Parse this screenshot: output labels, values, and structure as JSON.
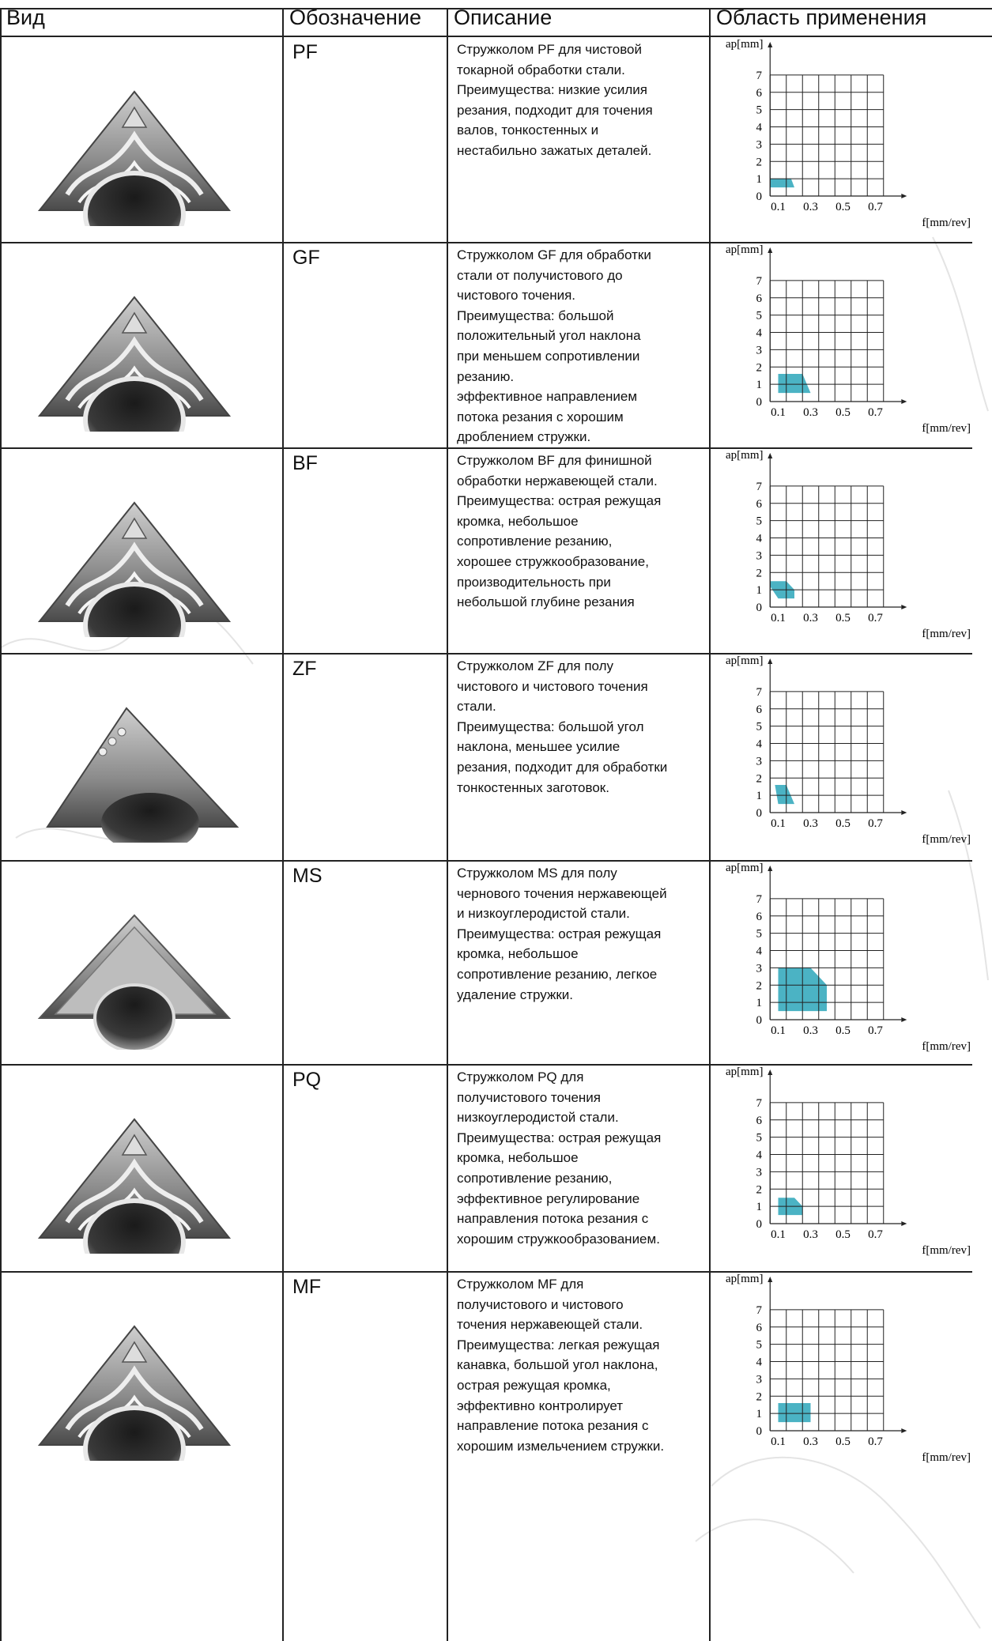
{
  "header": {
    "col_view": "Вид",
    "col_code": "Обозначение",
    "col_desc": "Описание",
    "col_app": "Область применения"
  },
  "chart_axes": {
    "ylabel": "ap[mm]",
    "xlabel": "f[mm/rev]",
    "yticks": [
      "0",
      "1",
      "2",
      "3",
      "4",
      "5",
      "6",
      "7"
    ],
    "xticks": [
      "0.1",
      "0.3",
      "0.5",
      "0.7"
    ],
    "fill_color": "#4bb3c4"
  },
  "rows": [
    {
      "code": "PF",
      "icon": "pf-insert-icon",
      "description": "Стружколом PF для чистовой\nтокарной обработки стали.\nПреимущества: низкие усилия\nрезания, подходит для точения\nвалов, тонкостенных и\nнестабильно зажатых деталей.",
      "chart_data": {
        "type": "area",
        "xlabel": "f[mm/rev]",
        "ylabel": "ap[mm]",
        "xlim": [
          0,
          0.8
        ],
        "ylim": [
          0,
          7.5
        ],
        "region": [
          [
            0.05,
            0.5
          ],
          [
            0.2,
            0.5
          ],
          [
            0.18,
            1
          ],
          [
            0.05,
            1
          ]
        ]
      }
    },
    {
      "code": "GF",
      "icon": "gf-insert-icon",
      "description": "Стружколом GF для обработки\nстали от получистового до\nчистового точения.\nПреимущества: большой\nположительный угол наклона\nпри меньшем сопротивлении\nрезанию.\nэффективное направлением\nпотока резания с хорошим\nдроблением стружки.",
      "chart_data": {
        "type": "area",
        "xlabel": "f[mm/rev]",
        "ylabel": "ap[mm]",
        "xlim": [
          0,
          0.8
        ],
        "ylim": [
          0,
          7.5
        ],
        "region": [
          [
            0.1,
            0.5
          ],
          [
            0.3,
            0.5
          ],
          [
            0.25,
            1.6
          ],
          [
            0.1,
            1.6
          ]
        ]
      }
    },
    {
      "code": "BF",
      "icon": "bf-insert-icon",
      "description": "Стружколом BF для финишной\nобработки нержавеющей стали.\nПреимущества: острая режущая\nкромка, небольшое\nсопротивление резанию,\nхорошее стружкообразование,\nпроизводительность при\nнебольшой глубине резания",
      "chart_data": {
        "type": "area",
        "xlabel": "f[mm/rev]",
        "ylabel": "ap[mm]",
        "xlim": [
          0,
          0.8
        ],
        "ylim": [
          0,
          7.5
        ],
        "region": [
          [
            0.1,
            0.5
          ],
          [
            0.2,
            0.5
          ],
          [
            0.2,
            1
          ],
          [
            0.15,
            1.5
          ],
          [
            0.05,
            1.5
          ],
          [
            0.05,
            1.2
          ]
        ]
      }
    },
    {
      "code": "ZF",
      "icon": "zf-insert-icon",
      "description": "Стружколом ZF для полу\nчистового и чистового точения\nстали.\nПреимущества: большой угол\nнаклона, меньшее усилие\nрезания, подходит для обработки\nтонкостенных заготовок.",
      "chart_data": {
        "type": "area",
        "xlabel": "f[mm/rev]",
        "ylabel": "ap[mm]",
        "xlim": [
          0,
          0.8
        ],
        "ylim": [
          0,
          7.5
        ],
        "region": [
          [
            0.1,
            0.5
          ],
          [
            0.2,
            0.5
          ],
          [
            0.15,
            1.6
          ],
          [
            0.08,
            1.6
          ]
        ]
      }
    },
    {
      "code": "MS",
      "icon": "ms-insert-icon",
      "description": "Стружколом MS для полу\nчернового точения нержавеющей\nи низкоуглеродистой стали.\nПреимущества: острая режущая\nкромка, небольшое\nсопротивление резанию, легкое\nудаление стружки.",
      "chart_data": {
        "type": "area",
        "xlabel": "f[mm/rev]",
        "ylabel": "ap[mm]",
        "xlim": [
          0,
          0.8
        ],
        "ylim": [
          0,
          7.5
        ],
        "region": [
          [
            0.1,
            0.5
          ],
          [
            0.4,
            0.5
          ],
          [
            0.4,
            2
          ],
          [
            0.3,
            3
          ],
          [
            0.1,
            3
          ]
        ]
      }
    },
    {
      "code": "PQ",
      "icon": "pq-insert-icon",
      "description": "Стружколом PQ для\nполучистового точения\nнизкоуглеродистой стали.\nПреимущества: острая режущая\nкромка, небольшое\nсопротивление резанию,\nэффективное регулирование\nнаправления потока резания с\nхорошим стружкообразованием.",
      "chart_data": {
        "type": "area",
        "xlabel": "f[mm/rev]",
        "ylabel": "ap[mm]",
        "xlim": [
          0,
          0.8
        ],
        "ylim": [
          0,
          7.5
        ],
        "region": [
          [
            0.1,
            0.5
          ],
          [
            0.25,
            0.5
          ],
          [
            0.25,
            1
          ],
          [
            0.2,
            1.5
          ],
          [
            0.1,
            1.5
          ]
        ]
      }
    },
    {
      "code": "MF",
      "icon": "mf-insert-icon",
      "description": "Стружколом MF для\nполучистового и чистового\nточения нержавеющей стали.\nПреимущества: легкая режущая\nканавка, большой угол наклона,\nострая режущая кромка,\nэффективно контролирует\nнаправление потока резания с\nхорошим измельчением стружки.",
      "chart_data": {
        "type": "area",
        "xlabel": "f[mm/rev]",
        "ylabel": "ap[mm]",
        "xlim": [
          0,
          0.8
        ],
        "ylim": [
          0,
          7.5
        ],
        "region": [
          [
            0.1,
            0.5
          ],
          [
            0.3,
            0.5
          ],
          [
            0.3,
            1.6
          ],
          [
            0.1,
            1.6
          ]
        ]
      }
    }
  ]
}
